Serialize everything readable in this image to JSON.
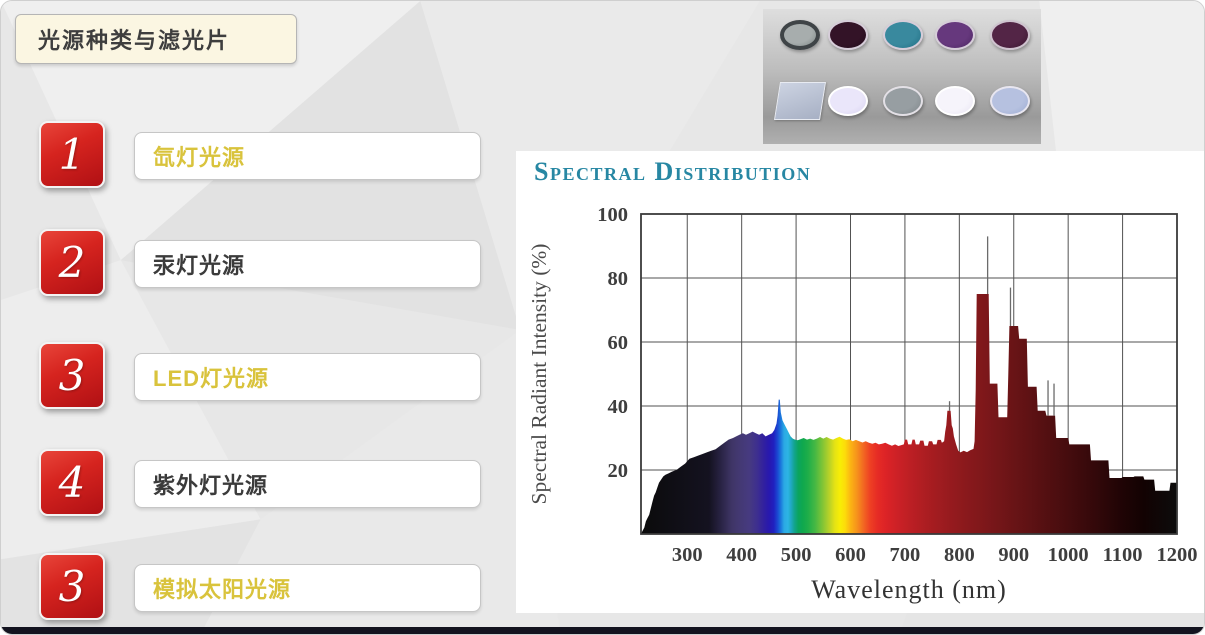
{
  "slide": {
    "title": "光源种类与滤光片",
    "list": [
      {
        "number": "1",
        "label": "氙灯光源",
        "highlight": true
      },
      {
        "number": "2",
        "label": "汞灯光源",
        "highlight": false
      },
      {
        "number": "3",
        "label": "LED灯光源",
        "highlight": true
      },
      {
        "number": "4",
        "label": "紫外灯光源",
        "highlight": false
      },
      {
        "number": "3",
        "label": "模拟太阳光源",
        "highlight": true
      }
    ],
    "colors": {
      "badge_red": "#cf1b1a",
      "highlight_gold": "#d9c33c",
      "text_dark": "#3b3b3b",
      "panel_cream": "#fbf6e2",
      "bottom_bar": "#13131f"
    }
  },
  "filters_photo": {
    "row1": [
      {
        "name": "nd-filter-lens",
        "face": "#a7adad",
        "face2": "#7d8685",
        "ring": "#3f4447",
        "ring_w": 4
      },
      {
        "name": "dark-magenta-filter",
        "face": "#331327",
        "face2": "#1f0a18",
        "ring": "#d6cdd9",
        "ring_w": 2
      },
      {
        "name": "teal-filter",
        "face": "#39899e",
        "face2": "#1f6d82",
        "ring": "#d6cdd9",
        "ring_w": 2
      },
      {
        "name": "purple-filter",
        "face": "#66387d",
        "face2": "#4a2560",
        "ring": "#d6cdd9",
        "ring_w": 2
      },
      {
        "name": "plum-filter",
        "face": "#532546",
        "face2": "#38152e",
        "ring": "#cfc3cf",
        "ring_w": 2
      }
    ],
    "row2": [
      {
        "name": "glass-plate",
        "face": "#ccd3e2",
        "face2": "#a7b0c4",
        "ring": "#e8ebf2",
        "ring_w": 1
      },
      {
        "name": "pale-lavender-filter",
        "face": "#eae6fa",
        "face2": "#d8d2f0",
        "ring": "#ffffff",
        "ring_w": 2
      },
      {
        "name": "gray-filter",
        "face": "#979ea2",
        "face2": "#7e8589",
        "ring": "#e3e0e6",
        "ring_w": 2
      },
      {
        "name": "white-filter",
        "face": "#f6f4fb",
        "face2": "#e7e3f2",
        "ring": "#ffffff",
        "ring_w": 2
      },
      {
        "name": "periwinkle-filter",
        "face": "#b6c1e0",
        "face2": "#9dabd2",
        "ring": "#e8e6f0",
        "ring_w": 2
      }
    ]
  },
  "chart_data": {
    "type": "area",
    "title": "Spectral Distribution",
    "xlabel": "Wavelength (nm)",
    "ylabel": "Spectral Radiant Intensity (%)",
    "series_name": "xenon-lamp-spectral-output",
    "xlim": [
      215,
      1200
    ],
    "ylim": [
      0,
      100
    ],
    "x_ticks": [
      300,
      400,
      500,
      600,
      700,
      800,
      900,
      1000,
      1100,
      1200
    ],
    "y_ticks": [
      20,
      40,
      60,
      80,
      100
    ],
    "grid": true,
    "legend_position": "none",
    "title_color": "#2787a3",
    "axis_color": "#3e3e3e",
    "grid_color": "#525252",
    "points": [
      [
        215,
        0
      ],
      [
        218,
        1
      ],
      [
        221,
        2
      ],
      [
        224,
        4
      ],
      [
        227,
        5
      ],
      [
        230,
        6
      ],
      [
        233,
        8
      ],
      [
        236,
        10
      ],
      [
        239,
        12
      ],
      [
        242,
        13
      ],
      [
        245,
        14.5
      ],
      [
        248,
        16
      ],
      [
        252,
        17
      ],
      [
        256,
        18
      ],
      [
        260,
        18.5
      ],
      [
        266,
        19
      ],
      [
        272,
        19.5
      ],
      [
        280,
        20
      ],
      [
        288,
        21
      ],
      [
        296,
        22
      ],
      [
        304,
        23.5
      ],
      [
        312,
        24
      ],
      [
        320,
        24.5
      ],
      [
        328,
        25
      ],
      [
        336,
        25.5
      ],
      [
        344,
        26
      ],
      [
        352,
        26.5
      ],
      [
        360,
        27.5
      ],
      [
        368,
        28.5
      ],
      [
        376,
        29.5
      ],
      [
        384,
        30
      ],
      [
        390,
        30.5
      ],
      [
        396,
        31
      ],
      [
        402,
        31.5
      ],
      [
        408,
        31
      ],
      [
        414,
        31.5
      ],
      [
        420,
        32
      ],
      [
        426,
        31.5
      ],
      [
        432,
        31
      ],
      [
        438,
        31.5
      ],
      [
        444,
        30.5
      ],
      [
        450,
        31
      ],
      [
        456,
        31.5
      ],
      [
        460,
        32.5
      ],
      [
        464,
        34.5
      ],
      [
        466,
        37
      ],
      [
        468,
        42
      ],
      [
        470,
        42
      ],
      [
        472,
        38
      ],
      [
        475,
        35.5
      ],
      [
        478,
        34.5
      ],
      [
        481,
        33.5
      ],
      [
        484,
        32.5
      ],
      [
        487,
        31.5
      ],
      [
        490,
        30.5
      ],
      [
        494,
        29.8
      ],
      [
        498,
        29.5
      ],
      [
        503,
        29.3
      ],
      [
        508,
        29.6
      ],
      [
        514,
        30
      ],
      [
        520,
        29.5
      ],
      [
        526,
        29.8
      ],
      [
        532,
        29.4
      ],
      [
        538,
        29.8
      ],
      [
        544,
        30.3
      ],
      [
        550,
        29.8
      ],
      [
        556,
        30.3
      ],
      [
        562,
        29.8
      ],
      [
        568,
        29.5
      ],
      [
        574,
        30
      ],
      [
        580,
        30.4
      ],
      [
        586,
        29.8
      ],
      [
        592,
        29.4
      ],
      [
        598,
        29.6
      ],
      [
        604,
        29
      ],
      [
        610,
        29.4
      ],
      [
        616,
        29
      ],
      [
        622,
        28.6
      ],
      [
        628,
        29
      ],
      [
        634,
        28.5
      ],
      [
        640,
        28.2
      ],
      [
        646,
        28.5
      ],
      [
        652,
        28
      ],
      [
        658,
        28.2
      ],
      [
        664,
        28.5
      ],
      [
        670,
        28
      ],
      [
        676,
        27.6
      ],
      [
        682,
        28
      ],
      [
        688,
        27.5
      ],
      [
        694,
        27.8
      ],
      [
        698,
        28
      ],
      [
        700,
        29.5
      ],
      [
        704,
        29.5
      ],
      [
        706,
        28
      ],
      [
        712,
        28
      ],
      [
        714,
        29.5
      ],
      [
        718,
        29.5
      ],
      [
        720,
        28
      ],
      [
        726,
        28
      ],
      [
        728,
        29.2
      ],
      [
        734,
        29.2
      ],
      [
        736,
        27.6
      ],
      [
        742,
        27.6
      ],
      [
        744,
        29
      ],
      [
        750,
        29
      ],
      [
        752,
        28
      ],
      [
        758,
        28
      ],
      [
        760,
        29.4
      ],
      [
        766,
        29.4
      ],
      [
        768,
        28.5
      ],
      [
        772,
        29
      ],
      [
        774,
        32
      ],
      [
        776,
        34
      ],
      [
        778,
        38.5
      ],
      [
        784,
        38.5
      ],
      [
        786,
        34
      ],
      [
        788,
        33
      ],
      [
        790,
        30.5
      ],
      [
        794,
        28
      ],
      [
        798,
        26
      ],
      [
        802,
        25.5
      ],
      [
        808,
        26
      ],
      [
        814,
        25.6
      ],
      [
        820,
        26.2
      ],
      [
        826,
        26.6
      ],
      [
        828,
        29
      ],
      [
        830,
        45
      ],
      [
        832,
        75
      ],
      [
        854,
        75
      ],
      [
        856,
        47
      ],
      [
        870,
        47
      ],
      [
        872,
        36.5
      ],
      [
        888,
        36.5
      ],
      [
        890,
        50
      ],
      [
        892,
        65
      ],
      [
        908,
        65
      ],
      [
        910,
        61
      ],
      [
        924,
        61
      ],
      [
        926,
        46
      ],
      [
        942,
        46
      ],
      [
        944,
        38.5
      ],
      [
        958,
        38.5
      ],
      [
        960,
        37
      ],
      [
        976,
        37
      ],
      [
        978,
        30
      ],
      [
        1000,
        30
      ],
      [
        1002,
        28
      ],
      [
        1040,
        28
      ],
      [
        1042,
        23
      ],
      [
        1074,
        23
      ],
      [
        1076,
        17.5
      ],
      [
        1098,
        17.5
      ],
      [
        1100,
        17.8
      ],
      [
        1120,
        17.8
      ],
      [
        1122,
        18
      ],
      [
        1138,
        18
      ],
      [
        1140,
        17
      ],
      [
        1158,
        17
      ],
      [
        1160,
        13.5
      ],
      [
        1186,
        13.5
      ],
      [
        1188,
        16
      ],
      [
        1200,
        16
      ]
    ],
    "spikes": [
      [
        782,
        38.5,
        41.5
      ],
      [
        852,
        75,
        93
      ],
      [
        894,
        65,
        77
      ],
      [
        963,
        37,
        48
      ],
      [
        974,
        37,
        47
      ]
    ],
    "spectrum_stops": [
      [
        215,
        "#0b0b0b"
      ],
      [
        340,
        "#141220"
      ],
      [
        362,
        "#292344"
      ],
      [
        382,
        "#3f3566"
      ],
      [
        398,
        "#443974"
      ],
      [
        414,
        "#463a80"
      ],
      [
        428,
        "#3e2f8e"
      ],
      [
        440,
        "#32219e"
      ],
      [
        450,
        "#2818ae"
      ],
      [
        459,
        "#2020c0"
      ],
      [
        466,
        "#1b49d2"
      ],
      [
        472,
        "#1b78dc"
      ],
      [
        478,
        "#2ba9e4"
      ],
      [
        485,
        "#2db4e4"
      ],
      [
        491,
        "#1fa8c0"
      ],
      [
        497,
        "#12a48c"
      ],
      [
        504,
        "#0ba45f"
      ],
      [
        512,
        "#0fa84e"
      ],
      [
        522,
        "#1fae49"
      ],
      [
        535,
        "#46b844"
      ],
      [
        548,
        "#7ec436"
      ],
      [
        560,
        "#b4d029"
      ],
      [
        571,
        "#e4e215"
      ],
      [
        581,
        "#f8ed05"
      ],
      [
        590,
        "#fddc0a"
      ],
      [
        600,
        "#fbb413"
      ],
      [
        612,
        "#f6921c"
      ],
      [
        624,
        "#f26722"
      ],
      [
        636,
        "#ee4023"
      ],
      [
        650,
        "#e62b25"
      ],
      [
        665,
        "#dc2326"
      ],
      [
        685,
        "#cd2126"
      ],
      [
        710,
        "#bc1f24"
      ],
      [
        740,
        "#ab1d21"
      ],
      [
        775,
        "#9a1b1f"
      ],
      [
        810,
        "#8b191c"
      ],
      [
        850,
        "#7c171a"
      ],
      [
        900,
        "#691416"
      ],
      [
        950,
        "#571012"
      ],
      [
        1000,
        "#450c0e"
      ],
      [
        1050,
        "#33080a"
      ],
      [
        1100,
        "#1f0405"
      ],
      [
        1140,
        "#120202"
      ],
      [
        1200,
        "#0c0c0c"
      ]
    ]
  }
}
